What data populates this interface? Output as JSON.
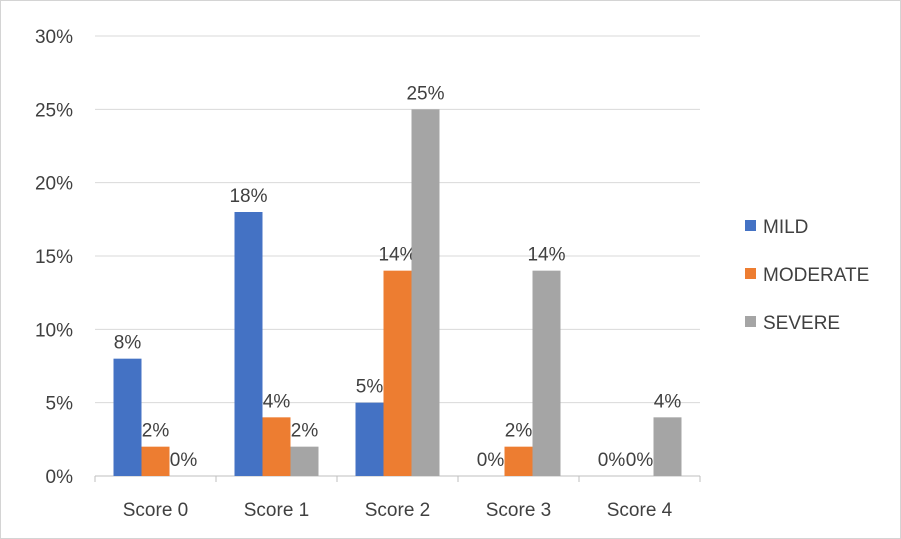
{
  "chart_data": {
    "type": "bar",
    "categories": [
      "Score 0",
      "Score 1",
      "Score 2",
      "Score 3",
      "Score 4"
    ],
    "series": [
      {
        "name": "MILD",
        "color": "#4472C4",
        "values": [
          8,
          18,
          5,
          0,
          0
        ],
        "labels": [
          "8%",
          "18%",
          "5%",
          "0%",
          "0%"
        ]
      },
      {
        "name": "MODERATE",
        "color": "#ED7D31",
        "values": [
          2,
          4,
          14,
          2,
          0
        ],
        "labels": [
          "2%",
          "4%",
          "14%",
          "2%",
          "0%"
        ]
      },
      {
        "name": "SEVERE",
        "color": "#A5A5A5",
        "values": [
          0,
          2,
          25,
          14,
          4
        ],
        "labels": [
          "0%",
          "2%",
          "25%",
          "14%",
          "4%"
        ]
      }
    ],
    "y_ticks": [
      "0%",
      "5%",
      "10%",
      "15%",
      "20%",
      "25%",
      "30%"
    ],
    "ylim": [
      0,
      30
    ],
    "grid": true,
    "legend_position": "right"
  }
}
